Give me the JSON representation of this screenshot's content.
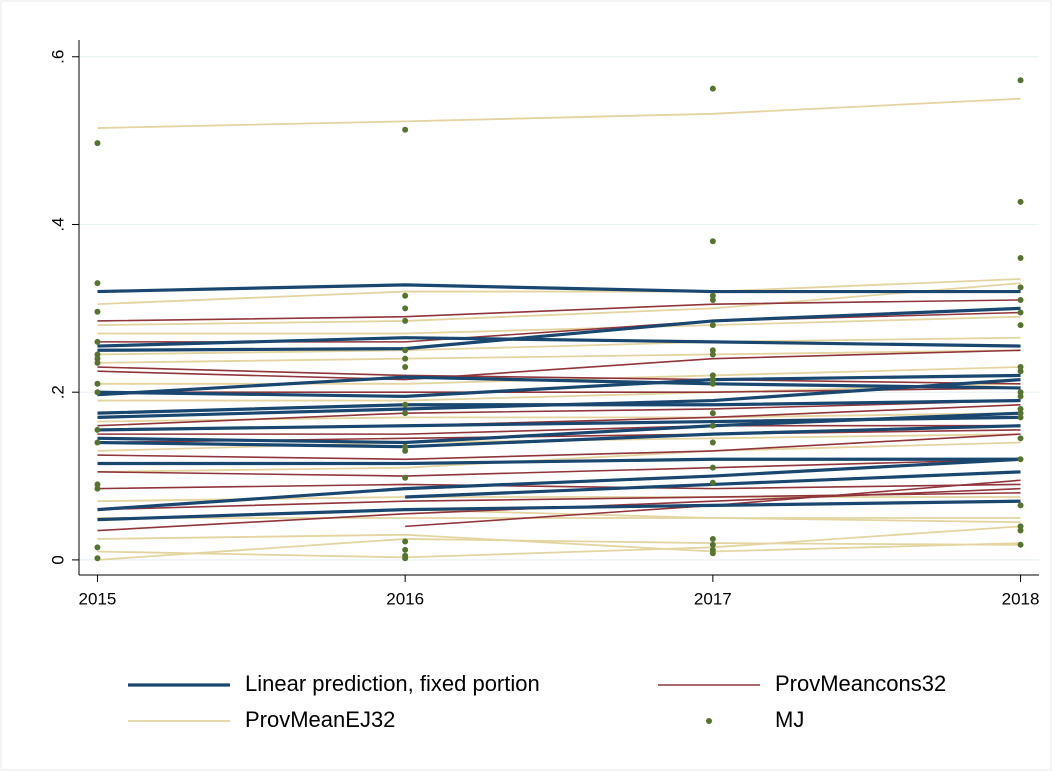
{
  "chart_data": {
    "type": "line",
    "x": [
      2015,
      2016,
      2017,
      2018
    ],
    "xlim": [
      2014.94,
      2018.06
    ],
    "xticks": [
      2015,
      2016,
      2017,
      2018
    ],
    "ylim": [
      -0.018,
      0.62
    ],
    "yticks": [
      0,
      {
        "value": 0.2,
        "label": ".2"
      },
      {
        "value": 0.4,
        "label": ".4"
      },
      {
        "value": 0.6,
        "label": ".6"
      }
    ],
    "grid": true,
    "legend": "bottom",
    "series": [
      {
        "name": "Linear prediction, fixed portion",
        "color": "#1a476f",
        "style": "line",
        "width": 3.2,
        "lines": [
          [
            0.32,
            0.328,
            0.32,
            0.32
          ],
          [
            0.255,
            0.265,
            0.26,
            0.255
          ],
          [
            0.25,
            0.252,
            0.285,
            0.3
          ],
          [
            0.197,
            0.218,
            0.21,
            0.205
          ],
          [
            0.2,
            0.195,
            0.215,
            0.22
          ],
          [
            0.175,
            0.185,
            0.185,
            0.19
          ],
          [
            0.17,
            0.18,
            0.19,
            0.215
          ],
          [
            0.145,
            0.14,
            0.16,
            0.175
          ],
          [
            0.14,
            0.135,
            0.15,
            0.16
          ],
          [
            0.115,
            0.115,
            0.12,
            0.12
          ],
          [
            0.06,
            0.085,
            0.1,
            0.12
          ],
          [
            0.048,
            0.06,
            0.065,
            0.07
          ],
          [
            null,
            0.075,
            0.09,
            0.105
          ],
          [
            0.155,
            0.16,
            0.165,
            0.17
          ]
        ]
      },
      {
        "name": "ProvMeancons32",
        "color": "#90353b",
        "style": "line",
        "width": 1.6,
        "lines": [
          [
            0.285,
            0.29,
            0.305,
            0.31
          ],
          [
            0.26,
            0.26,
            0.285,
            0.295
          ],
          [
            0.23,
            0.22,
            0.215,
            0.21
          ],
          [
            0.225,
            0.215,
            0.24,
            0.25
          ],
          [
            0.2,
            0.2,
            0.2,
            0.205
          ],
          [
            0.16,
            0.175,
            0.18,
            0.19
          ],
          [
            0.155,
            0.16,
            0.17,
            0.185
          ],
          [
            0.15,
            0.15,
            0.16,
            0.16
          ],
          [
            0.125,
            0.12,
            0.13,
            0.15
          ],
          [
            0.105,
            0.1,
            0.11,
            0.12
          ],
          [
            0.085,
            0.09,
            0.085,
            0.09
          ],
          [
            0.06,
            0.07,
            0.075,
            0.08
          ],
          [
            0.035,
            0.055,
            0.07,
            0.085
          ],
          [
            null,
            0.04,
            0.065,
            0.095
          ],
          [
            0.14,
            0.145,
            0.15,
            0.155
          ]
        ]
      },
      {
        "name": "ProvMeanEJ32",
        "color": "#e3d4a0",
        "style": "line",
        "width": 1.8,
        "lines": [
          [
            0.515,
            0.523,
            0.532,
            0.55
          ],
          [
            0.305,
            0.32,
            0.32,
            0.335
          ],
          [
            0.28,
            0.285,
            0.3,
            0.33
          ],
          [
            0.27,
            0.27,
            0.28,
            0.29
          ],
          [
            0.245,
            0.25,
            0.26,
            0.265
          ],
          [
            0.235,
            0.24,
            0.245,
            0.25
          ],
          [
            0.21,
            0.21,
            0.22,
            0.23
          ],
          [
            0.19,
            0.19,
            0.2,
            0.21
          ],
          [
            0.165,
            0.17,
            0.17,
            0.175
          ],
          [
            0.13,
            0.14,
            0.145,
            0.15
          ],
          [
            0.105,
            0.11,
            0.13,
            0.14
          ],
          [
            0.07,
            0.075,
            0.075,
            0.075
          ],
          [
            0.05,
            0.05,
            0.05,
            0.05
          ],
          [
            0.025,
            0.03,
            0.01,
            0.02
          ],
          [
            0.01,
            0.003,
            0.015,
            0.04
          ],
          [
            0.0,
            0.025,
            0.02,
            0.018
          ],
          [
            null,
            0.06,
            0.05,
            0.045
          ]
        ]
      },
      {
        "name": "MJ",
        "color": "#55752f",
        "style": "scatter",
        "x": [
          2015,
          2015,
          2015,
          2015,
          2015,
          2015,
          2015,
          2015,
          2015,
          2015,
          2015,
          2015,
          2015,
          2015,
          2015,
          2016,
          2016,
          2016,
          2016,
          2016,
          2016,
          2016,
          2016,
          2016,
          2016,
          2016,
          2016,
          2016,
          2016,
          2016,
          2016,
          2017,
          2017,
          2017,
          2017,
          2017,
          2017,
          2017,
          2017,
          2017,
          2017,
          2017,
          2017,
          2017,
          2017,
          2017,
          2017,
          2017,
          2017,
          2017,
          2018,
          2018,
          2018,
          2018,
          2018,
          2018,
          2018,
          2018,
          2018,
          2018,
          2018,
          2018,
          2018,
          2018,
          2018,
          2018,
          2018,
          2018,
          2018,
          2018
        ],
        "values": [
          0.497,
          0.33,
          0.296,
          0.26,
          0.245,
          0.24,
          0.235,
          0.21,
          0.2,
          0.155,
          0.14,
          0.09,
          0.085,
          0.015,
          0.002,
          0.513,
          0.315,
          0.3,
          0.285,
          0.25,
          0.24,
          0.23,
          0.185,
          0.175,
          0.135,
          0.13,
          0.098,
          0.022,
          0.012,
          0.005,
          0.002,
          0.562,
          0.38,
          0.315,
          0.31,
          0.28,
          0.25,
          0.245,
          0.22,
          0.215,
          0.21,
          0.175,
          0.16,
          0.14,
          0.11,
          0.092,
          0.025,
          0.018,
          0.012,
          0.008,
          0.572,
          0.427,
          0.36,
          0.325,
          0.31,
          0.295,
          0.28,
          0.23,
          0.225,
          0.2,
          0.195,
          0.18,
          0.175,
          0.17,
          0.145,
          0.12,
          0.065,
          0.04,
          0.035,
          0.018
        ]
      }
    ]
  }
}
